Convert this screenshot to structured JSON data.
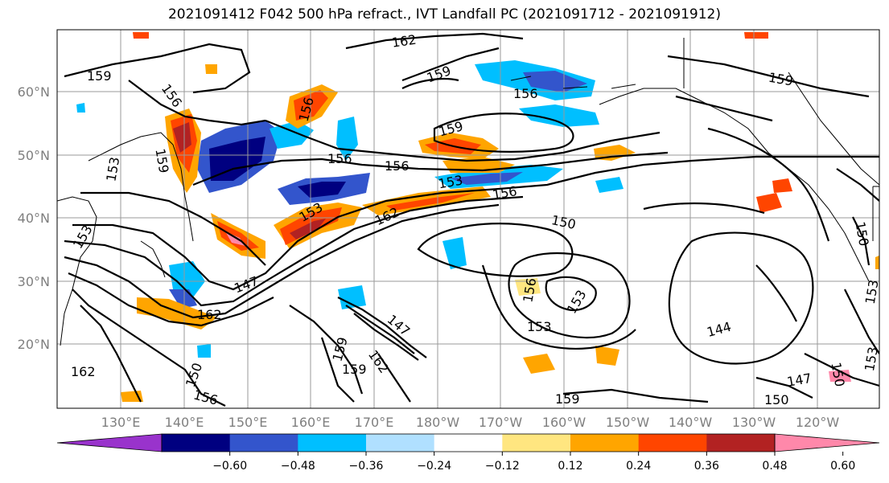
{
  "title": "2021091412 F042 500 hPa refract., IVT Landfall PC (2021091712 - 2021091912)",
  "lat_labels": [
    "60°N",
    "50°N",
    "40°N",
    "30°N",
    "20°N"
  ],
  "lon_labels": [
    "130°E",
    "140°E",
    "150°E",
    "160°E",
    "170°E",
    "180°W",
    "170°W",
    "160°W",
    "150°W",
    "140°W",
    "130°W",
    "120°W"
  ],
  "contour_labels": [
    "162",
    "159",
    "159",
    "156",
    "159",
    "156",
    "156",
    "159",
    "159",
    "156",
    "156",
    "153",
    "153",
    "156",
    "162",
    "153",
    "150",
    "150",
    "147",
    "153",
    "156",
    "153",
    "153",
    "147",
    "144",
    "162",
    "159",
    "162",
    "150",
    "156",
    "159",
    "162",
    "147",
    "150",
    "153",
    "150",
    "159",
    "153"
  ],
  "colorbar": {
    "ticks": [
      "−0.60",
      "−0.48",
      "−0.36",
      "−0.24",
      "−0.12",
      "0.12",
      "0.24",
      "0.36",
      "0.48",
      "0.60"
    ],
    "colors": [
      "#9933cc",
      "#000080",
      "#3355cc",
      "#00bfff",
      "#b0e0ff",
      "#ffffff",
      "#ffe680",
      "#ffa500",
      "#ff4500",
      "#b22222",
      "#ff88aa"
    ]
  }
}
